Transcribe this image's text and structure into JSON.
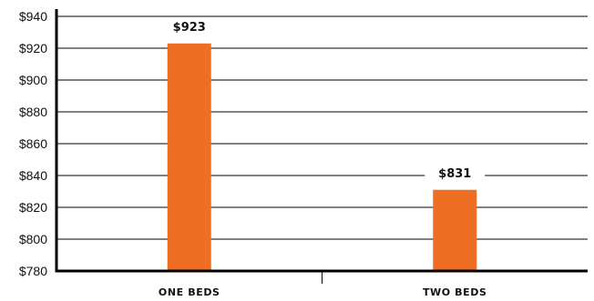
{
  "chart_data": {
    "type": "bar",
    "categories": [
      "ONE BEDS",
      "TWO BEDS"
    ],
    "values": [
      923,
      831
    ],
    "data_labels": [
      "$923",
      "$831"
    ],
    "y_ticks": [
      780,
      800,
      820,
      840,
      860,
      880,
      900,
      920,
      940
    ],
    "y_tick_labels": [
      "$780",
      "$800",
      "$820",
      "$840",
      "$860",
      "$880",
      "$900",
      "$920",
      "$940"
    ],
    "ylim": [
      780,
      940
    ],
    "title": "",
    "xlabel": "",
    "ylabel": "",
    "grid": true,
    "colors": {
      "bar": "#EE6F24",
      "grid": "#000000",
      "text": "#111111"
    }
  }
}
